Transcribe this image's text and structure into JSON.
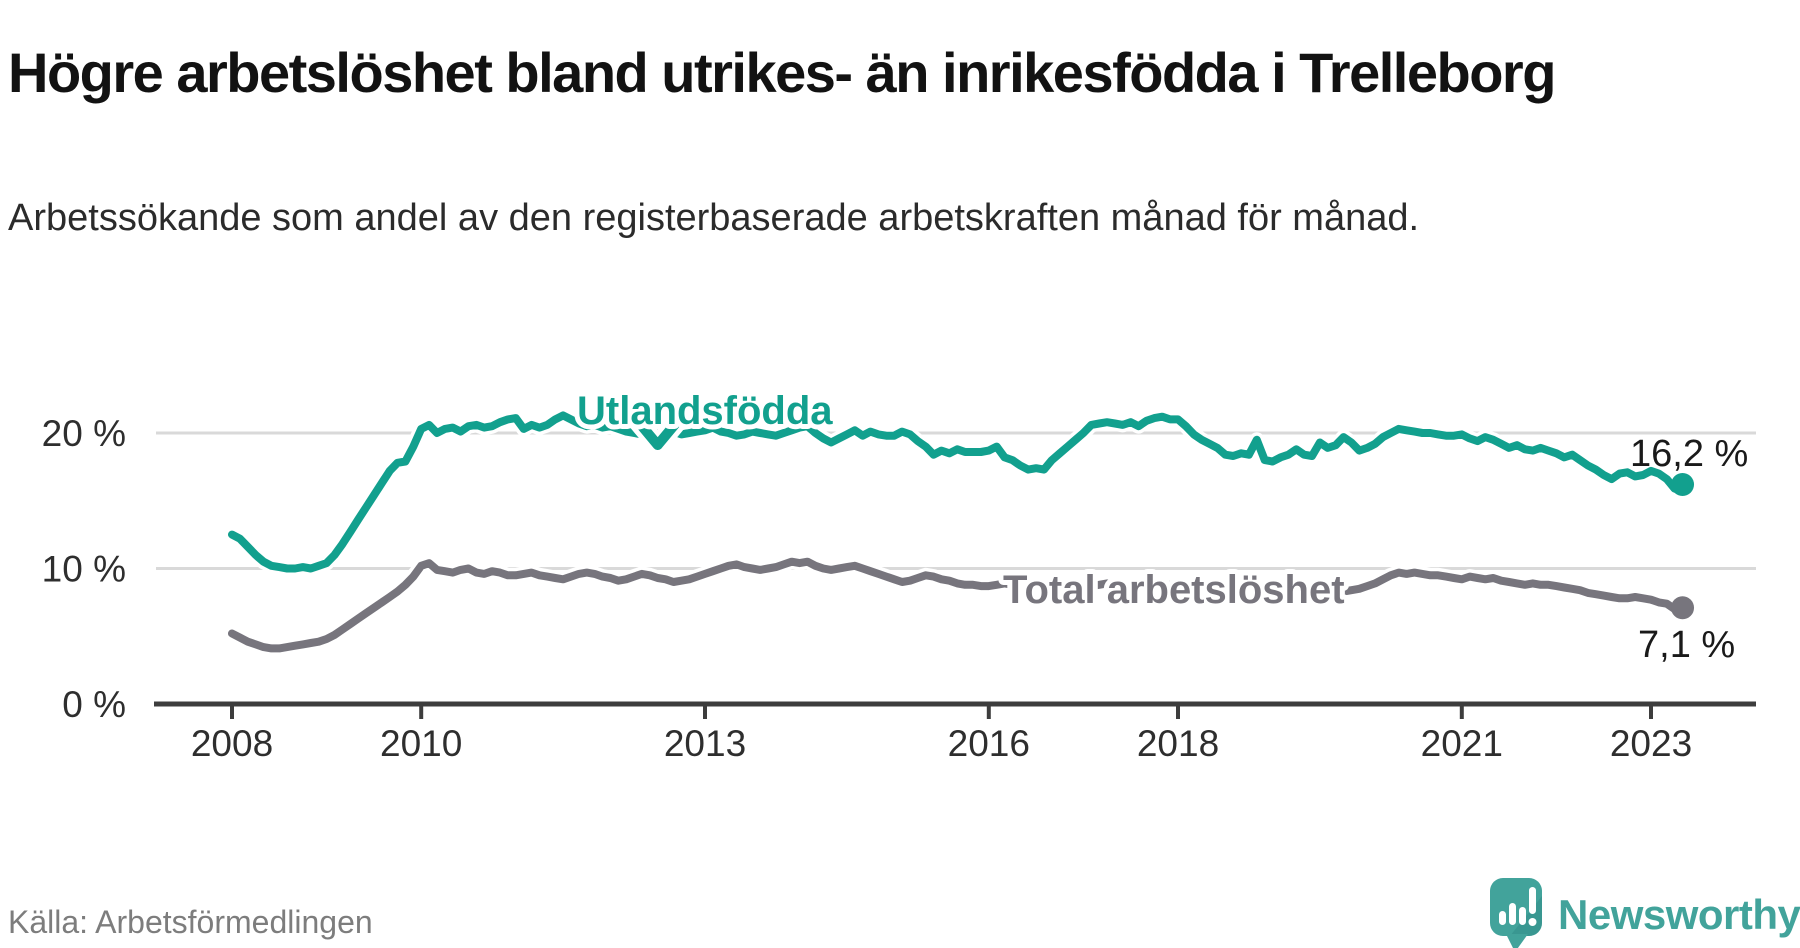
{
  "title": "Högre arbetslöshet bland utrikes- än inrikesfödda i Trelleborg",
  "subtitle": "Arbetssökande som andel av den registerbaserade arbetskraften månad för månad.",
  "source": "Källa: Arbetsförmedlingen",
  "branding": {
    "logo_text": "Newsworthy",
    "logo_icon": "newsworthy-speech-bubble-bar-chart-icon"
  },
  "colors": {
    "series_foreign_born": "#12a08e",
    "series_total": "#77757d",
    "axis": "#3d3d3d",
    "gridline": "#d9d9d9",
    "label_text": "#1a1a1a",
    "muted_text": "#7d7d7d",
    "brand_teal": "#42a39b"
  },
  "chart_data": {
    "type": "line",
    "x_unit": "month",
    "x_start": "2008-01",
    "x_end": "2023-05",
    "xticks": [
      2008,
      2010,
      2013,
      2016,
      2018,
      2021,
      2023
    ],
    "xtick_labels": [
      "2008",
      "2010",
      "2013",
      "2016",
      "2018",
      "2021",
      "2023"
    ],
    "yticks": [
      0,
      10,
      20
    ],
    "ytick_labels": [
      "0 %",
      "10 %",
      "20 %"
    ],
    "ylim": [
      0,
      24
    ],
    "grid": "horizontal",
    "value_unit": "percent",
    "series": [
      {
        "name": "Utlandsfödda",
        "color": "#12a08e",
        "end_value": 16.2,
        "end_label": "16,2 %",
        "values": [
          12.5,
          12.2,
          11.6,
          11.0,
          10.5,
          10.2,
          10.1,
          10.0,
          10.0,
          10.1,
          10.0,
          10.2,
          10.4,
          11.0,
          11.8,
          12.7,
          13.6,
          14.5,
          15.4,
          16.3,
          17.2,
          17.8,
          17.9,
          19.0,
          20.3,
          20.6,
          20.0,
          20.3,
          20.4,
          20.1,
          20.5,
          20.6,
          20.4,
          20.5,
          20.8,
          21.0,
          21.1,
          20.3,
          20.6,
          20.4,
          20.6,
          21.0,
          21.3,
          21.0,
          20.7,
          20.5,
          20.6,
          20.4,
          20.5,
          20.3,
          20.1,
          20.0,
          19.9,
          20.0,
          20.2,
          20.3,
          20.1,
          19.9,
          20.0,
          20.1,
          20.2,
          20.4,
          20.1,
          20.0,
          19.8,
          19.9,
          20.1,
          20.0,
          19.9,
          19.8,
          20.0,
          20.2,
          20.4,
          20.5,
          20.0,
          19.6,
          19.3,
          19.6,
          19.9,
          20.2,
          19.8,
          20.1,
          19.9,
          19.8,
          19.8,
          20.1,
          19.9,
          19.4,
          19.0,
          18.4,
          18.7,
          18.5,
          18.8,
          18.6,
          18.6,
          18.6,
          18.7,
          19.0,
          18.2,
          18.0,
          17.6,
          17.3,
          17.4,
          17.3,
          18.0,
          18.5,
          19.0,
          19.5,
          20.0,
          20.6,
          20.7,
          20.8,
          20.7,
          20.6,
          20.8,
          20.5,
          20.9,
          21.1,
          21.2,
          21.0,
          21.0,
          20.5,
          19.9,
          19.5,
          19.2,
          18.9,
          18.4,
          18.3,
          18.5,
          18.4,
          19.5,
          18.0,
          17.9,
          18.2,
          18.4,
          18.8,
          18.4,
          18.3,
          19.3,
          18.9,
          19.1,
          19.7,
          19.3,
          18.7,
          18.9,
          19.2,
          19.7,
          20.0,
          20.3,
          20.2,
          20.1,
          20.0,
          20.0,
          19.9,
          19.8,
          19.8,
          19.9,
          19.6,
          19.4,
          19.7,
          19.5,
          19.2,
          18.9,
          19.1,
          18.8,
          18.7,
          18.9,
          18.7,
          18.5,
          18.2,
          18.4,
          18.0,
          17.6,
          17.3,
          16.9,
          16.6,
          17.0,
          17.1,
          16.8,
          16.9,
          17.2,
          17.0,
          16.6,
          15.9,
          16.2
        ]
      },
      {
        "name": "Total arbetslöshet",
        "color": "#77757d",
        "end_value": 7.1,
        "end_label": "7,1 %",
        "values": [
          5.2,
          4.9,
          4.6,
          4.4,
          4.2,
          4.1,
          4.1,
          4.2,
          4.3,
          4.4,
          4.5,
          4.6,
          4.8,
          5.1,
          5.5,
          5.9,
          6.3,
          6.7,
          7.1,
          7.5,
          7.9,
          8.3,
          8.8,
          9.4,
          10.2,
          10.4,
          9.9,
          9.8,
          9.7,
          9.9,
          10.0,
          9.7,
          9.6,
          9.8,
          9.7,
          9.5,
          9.5,
          9.6,
          9.7,
          9.5,
          9.4,
          9.3,
          9.2,
          9.4,
          9.6,
          9.7,
          9.6,
          9.4,
          9.3,
          9.1,
          9.2,
          9.4,
          9.6,
          9.5,
          9.3,
          9.2,
          9.0,
          9.1,
          9.2,
          9.4,
          9.6,
          9.8,
          10.0,
          10.2,
          10.3,
          10.1,
          10.0,
          9.9,
          10.0,
          10.1,
          10.3,
          10.5,
          10.4,
          10.5,
          10.2,
          10.0,
          9.9,
          10.0,
          10.1,
          10.2,
          10.0,
          9.8,
          9.6,
          9.4,
          9.2,
          9.0,
          9.1,
          9.3,
          9.5,
          9.4,
          9.2,
          9.1,
          8.9,
          8.8,
          8.8,
          8.7,
          8.7,
          8.8,
          8.9,
          8.8,
          8.7,
          8.6,
          8.5,
          8.4,
          8.5,
          8.6,
          8.5,
          8.6,
          8.6,
          8.7,
          8.8,
          8.9,
          8.8,
          8.7,
          8.6,
          8.7,
          8.8,
          8.8,
          8.7,
          8.8,
          8.9,
          8.8,
          8.7,
          8.8,
          8.8,
          8.7,
          8.6,
          8.5,
          8.4,
          8.5,
          8.6,
          8.5,
          8.4,
          8.5,
          8.6,
          8.5,
          8.4,
          8.3,
          8.4,
          8.5,
          8.4,
          8.3,
          8.4,
          8.5,
          8.7,
          8.9,
          9.2,
          9.5,
          9.7,
          9.6,
          9.7,
          9.6,
          9.5,
          9.5,
          9.4,
          9.3,
          9.2,
          9.4,
          9.3,
          9.2,
          9.3,
          9.1,
          9.0,
          8.9,
          8.8,
          8.9,
          8.8,
          8.8,
          8.7,
          8.6,
          8.5,
          8.4,
          8.2,
          8.1,
          8.0,
          7.9,
          7.8,
          7.8,
          7.9,
          7.8,
          7.7,
          7.5,
          7.4,
          7.0,
          7.1
        ]
      }
    ]
  }
}
